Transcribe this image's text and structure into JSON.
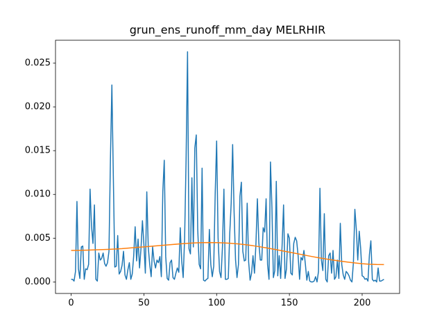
{
  "chart_data": {
    "type": "line",
    "title": "grun_ens_runoff_mm_day MELRHIR",
    "series": [
      {
        "color": "#1f77b4",
        "x": [
          0,
          1,
          2,
          3,
          4,
          5,
          6,
          7,
          8,
          9,
          10,
          11,
          12,
          13,
          14,
          15,
          16,
          17,
          18,
          19,
          20,
          21,
          22,
          23,
          24,
          25,
          26,
          27,
          28,
          29,
          30,
          31,
          32,
          33,
          34,
          35,
          36,
          37,
          38,
          39,
          40,
          41,
          42,
          43,
          44,
          45,
          46,
          47,
          48,
          49,
          50,
          51,
          52,
          53,
          54,
          55,
          56,
          57,
          58,
          59,
          60,
          61,
          62,
          63,
          64,
          65,
          66,
          67,
          68,
          69,
          70,
          71,
          72,
          73,
          74,
          75,
          76,
          77,
          78,
          79,
          80,
          81,
          82,
          83,
          84,
          85,
          86,
          87,
          88,
          89,
          90,
          91,
          92,
          93,
          94,
          95,
          96,
          97,
          98,
          99,
          100,
          101,
          102,
          103,
          104,
          105,
          106,
          107,
          108,
          109,
          110,
          111,
          112,
          113,
          114,
          115,
          116,
          117,
          118,
          119,
          120,
          121,
          122,
          123,
          124,
          125,
          126,
          127,
          128,
          129,
          130,
          131,
          132,
          133,
          134,
          135,
          136,
          137,
          138,
          139,
          140,
          141,
          142,
          143,
          144,
          145,
          146,
          147,
          148,
          149,
          150,
          151,
          152,
          153,
          154,
          155,
          156,
          157,
          158,
          159,
          160,
          161,
          162,
          163,
          164,
          165,
          166,
          167,
          168,
          169,
          170,
          171,
          172,
          173,
          174,
          175,
          176,
          177,
          178,
          179,
          180,
          181,
          182,
          183,
          184,
          185,
          186,
          187,
          188,
          189,
          190,
          191,
          192,
          193,
          194,
          195,
          196,
          197,
          198,
          199,
          200,
          201,
          202,
          203,
          204,
          205,
          206,
          207,
          208,
          209,
          210,
          211,
          212,
          213,
          214,
          215
        ],
        "values": [
          0.0003,
          0.0003,
          0.0001,
          0.0012,
          0.0092,
          0.0015,
          0.0004,
          0.004,
          0.0041,
          0.0003,
          0.0015,
          0.0014,
          0.002,
          0.0106,
          0.0064,
          0.0044,
          0.0088,
          0.0003,
          0.0001,
          0.0033,
          0.0025,
          0.0027,
          0.0033,
          0.0021,
          0.0018,
          0.0022,
          0.0035,
          0.014,
          0.0225,
          0.012,
          0.0017,
          0.0018,
          0.0053,
          0.0009,
          0.0012,
          0.0019,
          0.0035,
          0.0008,
          0.0003,
          0.0014,
          0.0022,
          0.0003,
          0.0009,
          0.003,
          0.0063,
          0.0024,
          0.0049,
          0.0016,
          0.0038,
          0.007,
          0.0043,
          0.001,
          0.0103,
          0.004,
          0.002,
          0.0006,
          0.004,
          0.0024,
          0.0016,
          0.0025,
          0.0022,
          0.0029,
          0.0006,
          0.0103,
          0.0139,
          0.0029,
          0.0004,
          0.0002,
          0.0022,
          0.0025,
          0.0005,
          0.0003,
          0.001,
          0.0016,
          0.0011,
          0.0062,
          0.0024,
          0.0005,
          0.005,
          0.014,
          0.0263,
          0.0038,
          0.0032,
          0.0119,
          0.004,
          0.0153,
          0.0168,
          0.006,
          0.002,
          0.0015,
          0.013,
          0.0002,
          0.0001,
          0.0003,
          0.0004,
          0.006,
          0.002,
          0.0006,
          0.0018,
          0.01,
          0.0161,
          0.005,
          0.0012,
          0.0005,
          0.004,
          0.0106,
          0.0003,
          0.0003,
          0.0004,
          0.0055,
          0.009,
          0.0157,
          0.008,
          0.0025,
          0.0005,
          0.002,
          0.0098,
          0.0114,
          0.0035,
          0.0024,
          0.0025,
          0.009,
          0.0023,
          0.0002,
          0.001,
          0.003,
          0.001,
          0.0043,
          0.0095,
          0.0045,
          0.0025,
          0.0025,
          0.0062,
          0.0057,
          0.0095,
          0.002,
          0.0003,
          0.0137,
          0.0085,
          0.0005,
          0.0013,
          0.0115,
          0.0007,
          0.003,
          0.0004,
          0.0042,
          0.0088,
          0.0004,
          0.0015,
          0.0055,
          0.005,
          0.001,
          0.0008,
          0.0044,
          0.0051,
          0.0047,
          0.003,
          0.0003,
          0.0028,
          0.0025,
          0.0036,
          0.002,
          0.0002,
          0.0012,
          0.0001,
          0,
          0,
          0.0001,
          0.0006,
          0,
          0.0012,
          0.0107,
          0.0025,
          0.0013,
          0.0078,
          0.0003,
          0,
          0.003,
          0.0033,
          0.001,
          0.0036,
          0.0003,
          0.0006,
          0.0025,
          0.0004,
          0.0067,
          0.002,
          0.0008,
          0.0003,
          0.0012,
          0.001,
          0.0007,
          0.0002,
          0,
          0.0022,
          0.0083,
          0.006,
          0.0025,
          0.0058,
          0.0038,
          0.0007,
          0.0006,
          0.0003,
          0.0004,
          0.0001,
          0.0031,
          0.0047,
          0.0003,
          0.0001,
          0.0002,
          0,
          0.0016,
          0.0001,
          0.0001,
          0.0002,
          0.0003
        ]
      },
      {
        "color": "#ff7f0e",
        "x": [
          0,
          5,
          10,
          15,
          20,
          25,
          30,
          35,
          40,
          45,
          50,
          55,
          60,
          65,
          70,
          75,
          80,
          85,
          90,
          95,
          100,
          105,
          110,
          115,
          120,
          125,
          130,
          135,
          140,
          145,
          150,
          155,
          160,
          165,
          170,
          175,
          180,
          185,
          190,
          195,
          200,
          205,
          210,
          215
        ],
        "values": [
          0.0036,
          0.00361,
          0.00363,
          0.00366,
          0.00369,
          0.00372,
          0.00376,
          0.00381,
          0.00388,
          0.00395,
          0.00401,
          0.00407,
          0.00414,
          0.00421,
          0.00428,
          0.00435,
          0.00441,
          0.00446,
          0.00449,
          0.0045,
          0.00449,
          0.00446,
          0.00441,
          0.00434,
          0.00425,
          0.00414,
          0.00401,
          0.00387,
          0.00372,
          0.00356,
          0.0034,
          0.00324,
          0.00308,
          0.00292,
          0.00277,
          0.00263,
          0.0025,
          0.00238,
          0.00227,
          0.00217,
          0.00208,
          0.00202,
          0.00199,
          0.00198
        ]
      }
    ],
    "xlim": [
      -10.75,
      225.75
    ],
    "xticks": [
      0,
      50,
      100,
      150,
      200
    ],
    "ylim": [
      -0.001315,
      0.027615
    ],
    "yticks": [
      {
        "value": 0,
        "label": "0.000"
      },
      {
        "value": 0.005,
        "label": "0.005"
      },
      {
        "value": 0.01,
        "label": "0.010"
      },
      {
        "value": 0.015,
        "label": "0.015"
      },
      {
        "value": 0.02,
        "label": "0.020"
      },
      {
        "value": 0.025,
        "label": "0.025"
      }
    ],
    "grid": false
  }
}
